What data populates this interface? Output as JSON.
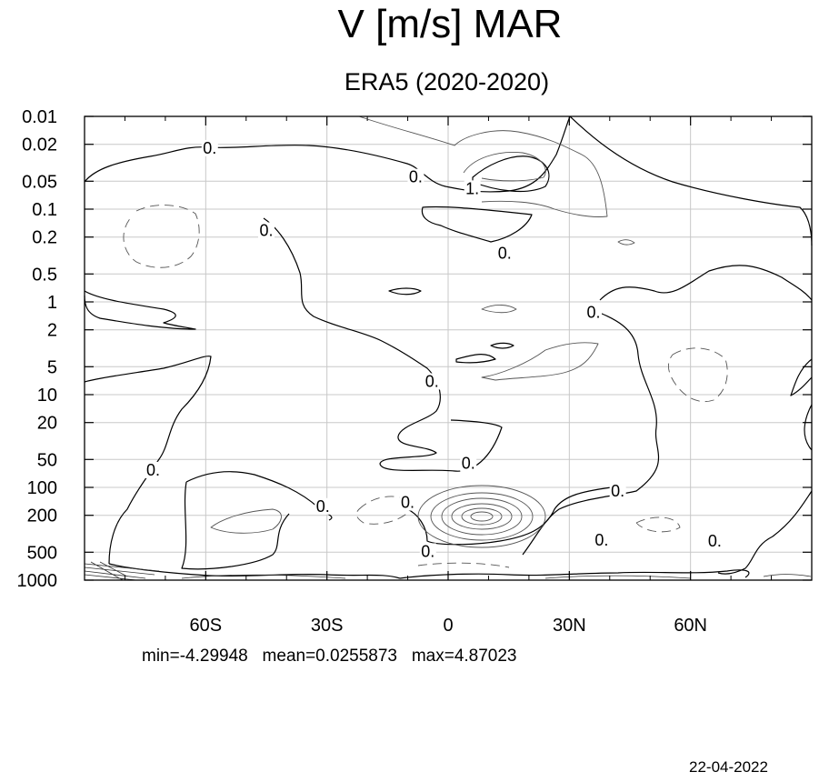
{
  "chart_data": {
    "type": "contour",
    "title": "V [m/s] MAR",
    "subtitle": "ERA5 (2020-2020)",
    "xlabel": "",
    "ylabel": "",
    "x_ticks": [
      {
        "value": -60,
        "label": "60S"
      },
      {
        "value": -30,
        "label": "30S"
      },
      {
        "value": 0,
        "label": "0"
      },
      {
        "value": 30,
        "label": "30N"
      },
      {
        "value": 60,
        "label": "60N"
      }
    ],
    "xlim": [
      -90,
      90
    ],
    "y_ticks": [
      {
        "value": 0.01,
        "label": "0.01"
      },
      {
        "value": 0.02,
        "label": "0.02"
      },
      {
        "value": 0.05,
        "label": "0.05"
      },
      {
        "value": 0.1,
        "label": "0.1"
      },
      {
        "value": 0.2,
        "label": "0.2"
      },
      {
        "value": 0.5,
        "label": "0.5"
      },
      {
        "value": 1,
        "label": "1"
      },
      {
        "value": 2,
        "label": "2"
      },
      {
        "value": 5,
        "label": "5"
      },
      {
        "value": 10,
        "label": "10"
      },
      {
        "value": 20,
        "label": "20"
      },
      {
        "value": 50,
        "label": "50"
      },
      {
        "value": 100,
        "label": "100"
      },
      {
        "value": 200,
        "label": "200"
      },
      {
        "value": 500,
        "label": "500"
      },
      {
        "value": 1000,
        "label": "1000"
      }
    ],
    "ylim": [
      1000,
      0.01
    ],
    "y_scale": "log (pressure, inverted)",
    "grid": true,
    "contour_labels": [
      {
        "text": "0.",
        "lat": -59,
        "p": 0.022
      },
      {
        "text": "0.",
        "lat": -8,
        "p": 0.045
      },
      {
        "text": "1.",
        "lat": 6,
        "p": 0.06
      },
      {
        "text": "0.",
        "lat": -45,
        "p": 0.17
      },
      {
        "text": "0.",
        "lat": 14,
        "p": 0.3
      },
      {
        "text": "0.",
        "lat": 36,
        "p": 1.3
      },
      {
        "text": "0.",
        "lat": -4,
        "p": 7.2
      },
      {
        "text": "0.",
        "lat": 5,
        "p": 55
      },
      {
        "text": "0.",
        "lat": -73,
        "p": 65
      },
      {
        "text": "0.",
        "lat": 42,
        "p": 110
      },
      {
        "text": "0.",
        "lat": -10,
        "p": 145
      },
      {
        "text": "0.",
        "lat": -31,
        "p": 160
      },
      {
        "text": "0.",
        "lat": -5,
        "p": 490
      },
      {
        "text": "0.",
        "lat": 38,
        "p": 370
      },
      {
        "text": "0.",
        "lat": 66,
        "p": 380
      }
    ],
    "stats": {
      "min": -4.29948,
      "mean": 0.0255873,
      "max": 4.87023
    }
  },
  "stats_text": "min=-4.29948   mean=0.0255873   max=4.87023",
  "date": "22-04-2022",
  "colors": {
    "contour": "#000000",
    "secondary_contour": "#555555",
    "grid": "#c8c8c8"
  }
}
